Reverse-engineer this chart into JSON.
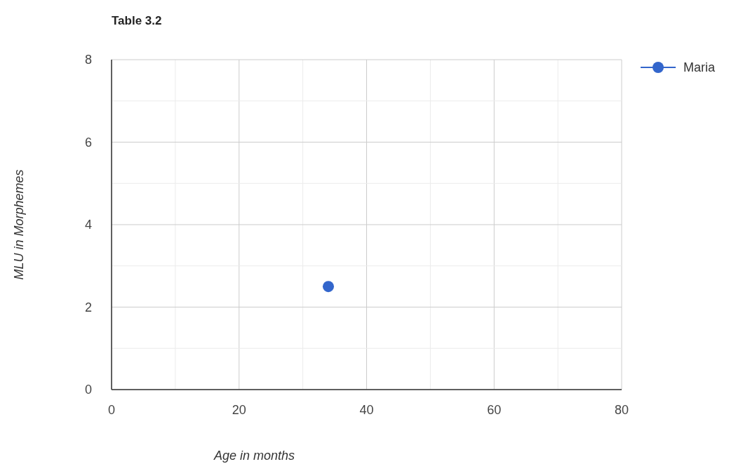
{
  "chart_data": {
    "type": "line",
    "title": "Table 3.2",
    "xlabel": "Age in months",
    "ylabel": "MLU in Morphemes",
    "x": [
      34
    ],
    "series": [
      {
        "name": "Maria",
        "color": "#3366cc",
        "values": [
          2.5
        ]
      }
    ],
    "xlim": [
      0,
      80
    ],
    "ylim": [
      0,
      8
    ],
    "xticks": [
      0,
      {
        "value": 10,
        "label": null
      },
      20,
      {
        "value": 30,
        "label": null
      },
      40,
      {
        "value": 50,
        "label": null
      },
      60,
      {
        "value": 70,
        "label": null
      },
      80
    ],
    "yticks": [
      0,
      {
        "value": 1,
        "label": null
      },
      2,
      {
        "value": 3,
        "label": null
      },
      4,
      {
        "value": 5,
        "label": null
      },
      6,
      {
        "value": 7,
        "label": null
      },
      8
    ],
    "grid": true,
    "legend": "top right",
    "marker": "circle"
  }
}
